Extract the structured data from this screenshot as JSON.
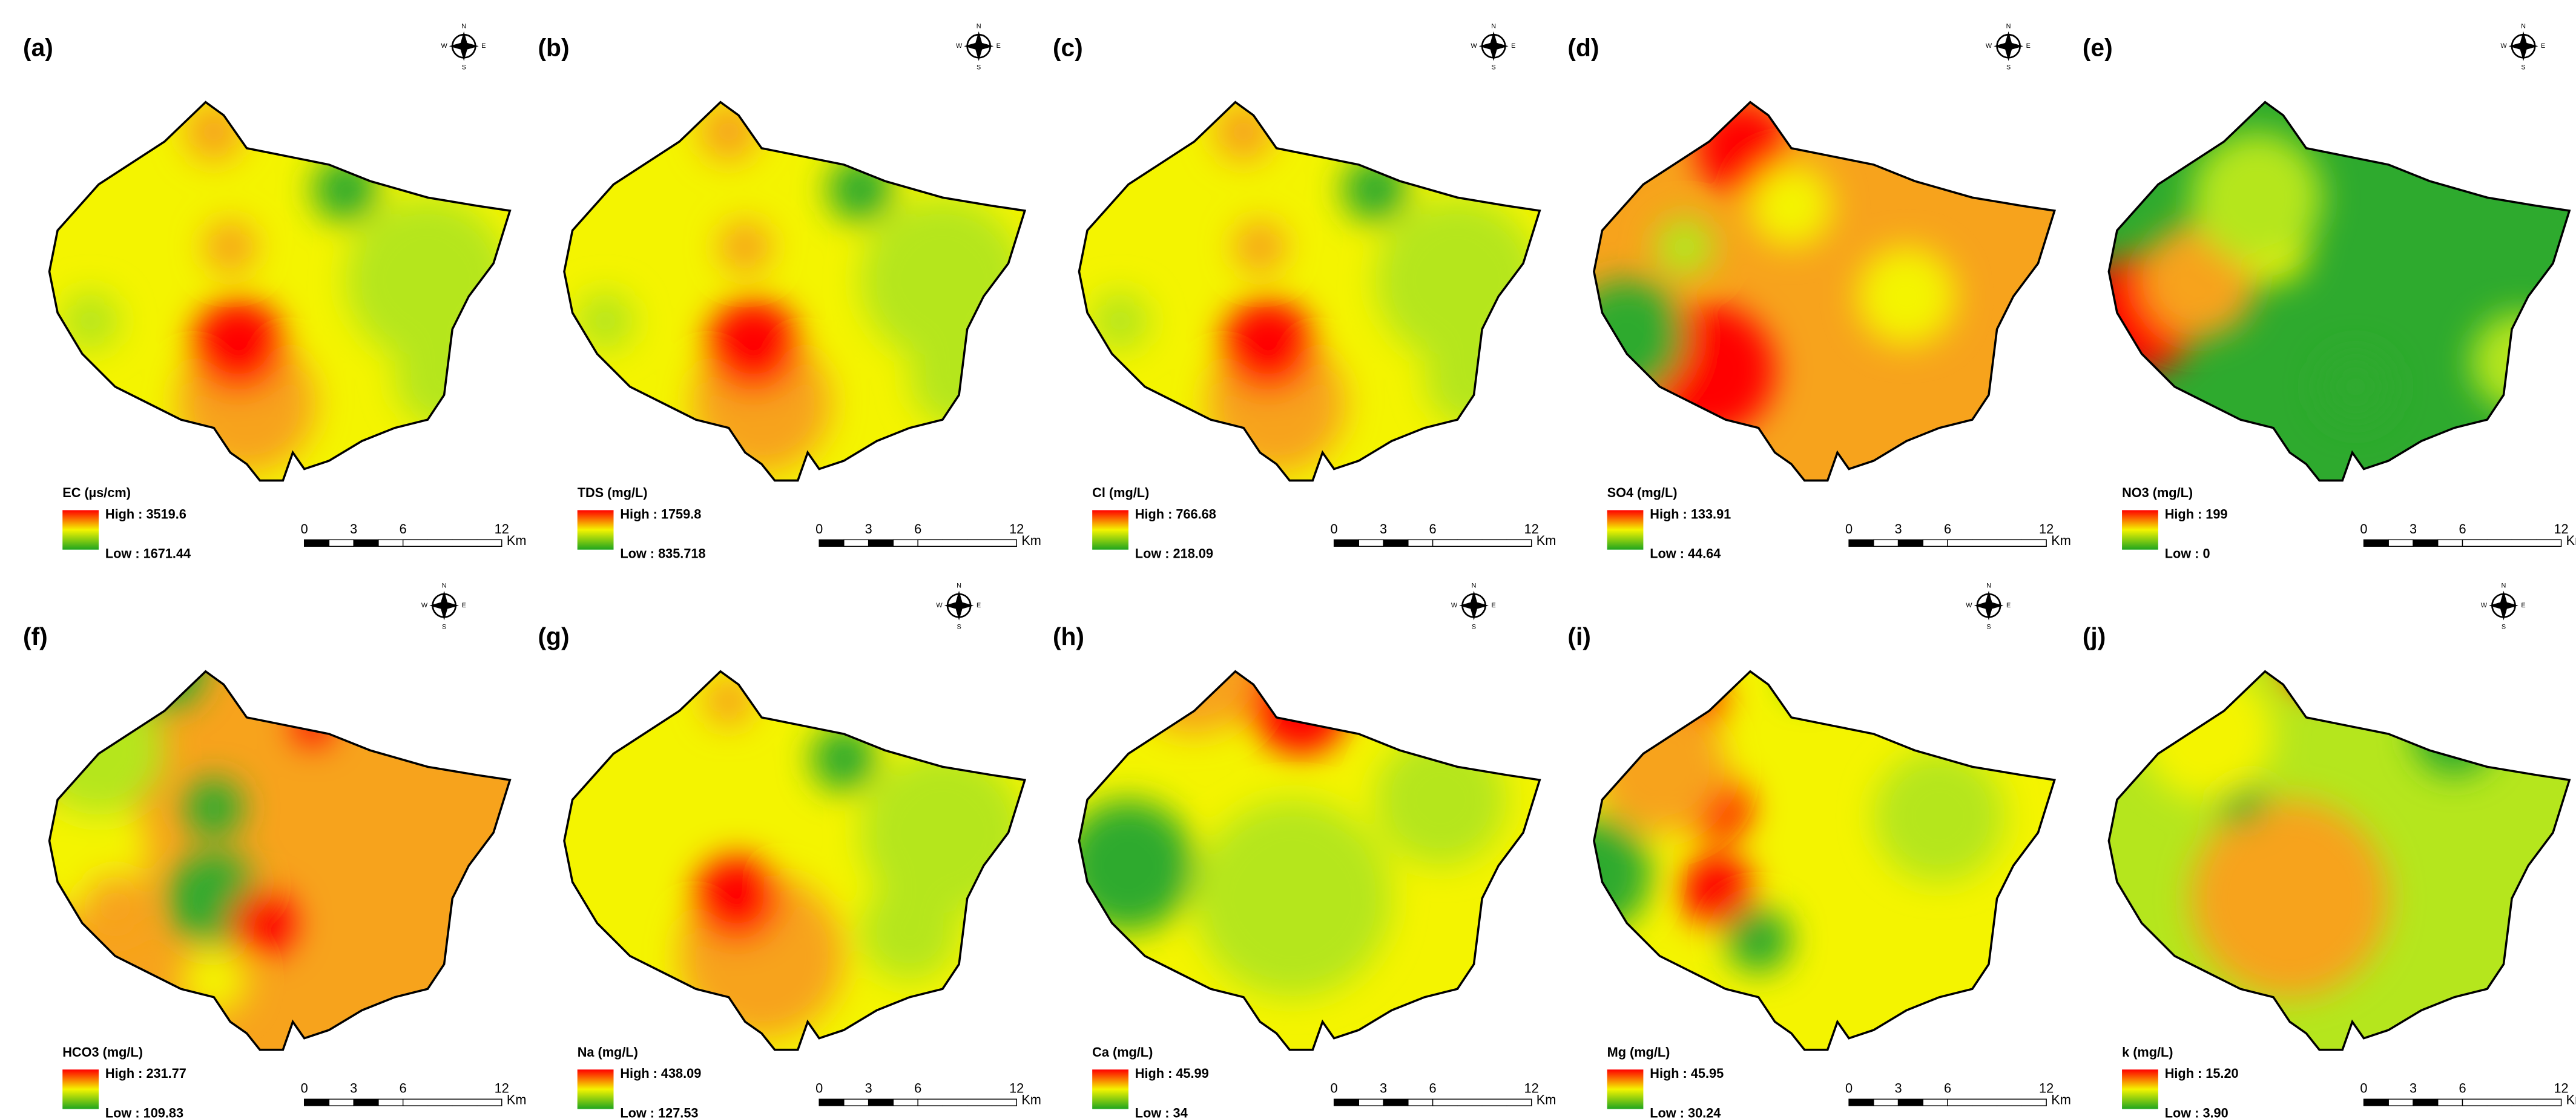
{
  "panels": [
    {
      "label": "(a)",
      "legend_title": "EC (µs/cm)",
      "high": "High : 3519.6",
      "low": "Low : 1671.44"
    },
    {
      "label": "(b)",
      "legend_title": "TDS (mg/L)",
      "high": "High : 1759.8",
      "low": "Low : 835.718"
    },
    {
      "label": "(c)",
      "legend_title": "Cl (mg/L)",
      "high": "High : 766.68",
      "low": "Low : 218.09"
    },
    {
      "label": "(d)",
      "legend_title": "SO4 (mg/L)",
      "high": "High : 133.91",
      "low": "Low : 44.64"
    },
    {
      "label": "(e)",
      "legend_title": "NO3 (mg/L)",
      "high": "High : 199",
      "low": "Low : 0"
    },
    {
      "label": "(f)",
      "legend_title": "HCO3 (mg/L)",
      "high": "High : 231.77",
      "low": "Low : 109.83"
    },
    {
      "label": "(g)",
      "legend_title": "Na (mg/L)",
      "high": "High : 438.09",
      "low": "Low : 127.53"
    },
    {
      "label": "(h)",
      "legend_title": "Ca (mg/L)",
      "high": "High : 45.99",
      "low": "Low : 34"
    },
    {
      "label": "(i)",
      "legend_title": "Mg (mg/L)",
      "high": "High : 45.95",
      "low": "Low : 30.24"
    },
    {
      "label": "(j)",
      "legend_title": "k (mg/L)",
      "high": "High : 15.20",
      "low": "Low : 3.90"
    }
  ],
  "scale_bar": {
    "labels": [
      "0",
      "3",
      "6",
      "12"
    ],
    "unit": "Km"
  },
  "compass": {
    "n": "N",
    "s": "S",
    "e": "E",
    "w": "W"
  }
}
